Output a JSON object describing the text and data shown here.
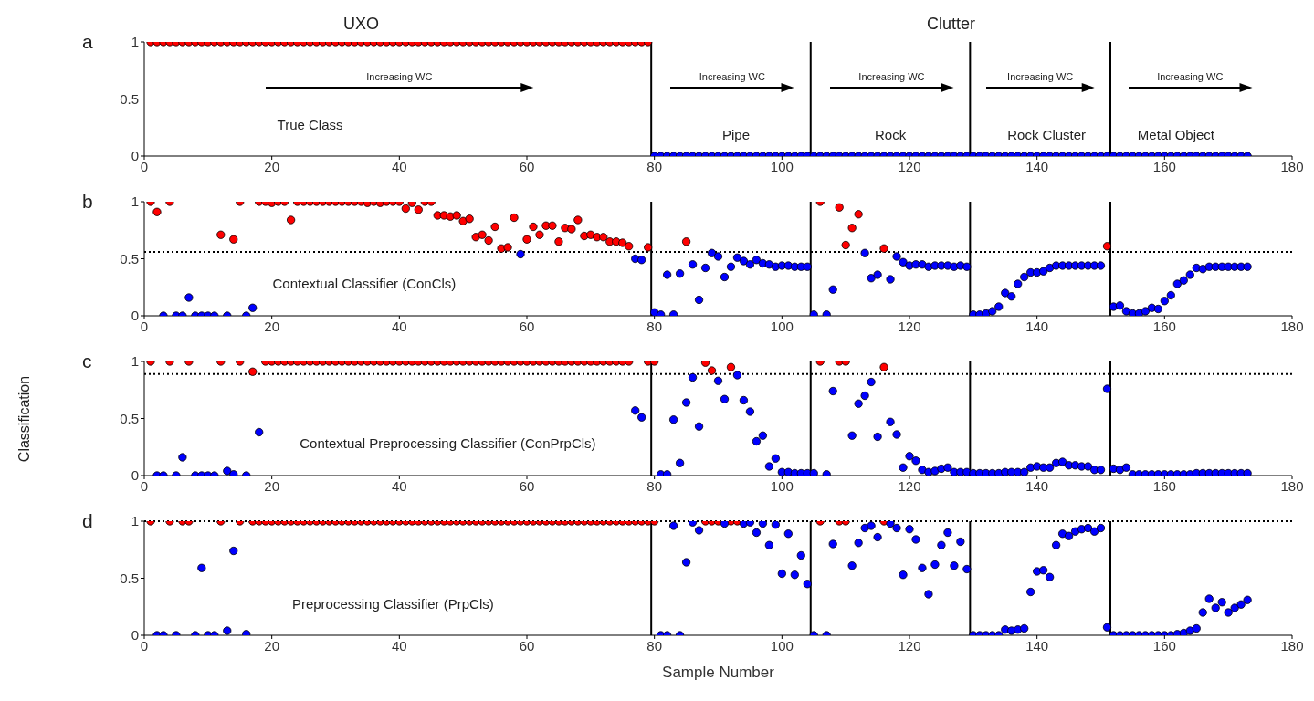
{
  "chart_data": [
    {
      "type": "scatter",
      "title": "a",
      "xlim": [
        0,
        180
      ],
      "xticks": [
        0,
        20,
        40,
        60,
        80,
        100,
        120,
        140,
        160,
        180
      ],
      "ylim": [
        0,
        1
      ],
      "yticks": [
        0,
        0.5,
        1
      ],
      "marker": "circle",
      "ref_lines": [
        {
          "axis": "x",
          "value": 79.5,
          "color": "#000000",
          "line_style": "solid"
        },
        {
          "axis": "x",
          "value": 104.5,
          "color": "#000000",
          "line_style": "solid"
        },
        {
          "axis": "x",
          "value": 129.5,
          "color": "#000000",
          "line_style": "solid"
        },
        {
          "axis": "x",
          "value": 151.5,
          "color": "#000000",
          "line_style": "solid"
        }
      ],
      "annotations": [
        "UXO",
        "Clutter",
        "Increasing WC",
        "Increasing WC",
        "Increasing WC",
        "Increasing WC",
        "Increasing WC",
        "True Class",
        "Pipe",
        "Rock",
        "Rock Cluster",
        "Metal Object"
      ],
      "series": [
        {
          "color": "#ff0000",
          "x": [
            1,
            2,
            3,
            4,
            5,
            6,
            7,
            8,
            9,
            10,
            11,
            12,
            13,
            14,
            15,
            16,
            17,
            18,
            19,
            20,
            21,
            22,
            23,
            24,
            25,
            26,
            27,
            28,
            29,
            30,
            31,
            32,
            33,
            34,
            35,
            36,
            37,
            38,
            39,
            40,
            41,
            42,
            43,
            44,
            45,
            46,
            47,
            48,
            49,
            50,
            51,
            52,
            53,
            54,
            55,
            56,
            57,
            58,
            59,
            60,
            61,
            62,
            63,
            64,
            65,
            66,
            67,
            68,
            69,
            70,
            71,
            72,
            73,
            74,
            75,
            76,
            77,
            78,
            79
          ],
          "values": [
            1,
            1,
            1,
            1,
            1,
            1,
            1,
            1,
            1,
            1,
            1,
            1,
            1,
            1,
            1,
            1,
            1,
            1,
            1,
            1,
            1,
            1,
            1,
            1,
            1,
            1,
            1,
            1,
            1,
            1,
            1,
            1,
            1,
            1,
            1,
            1,
            1,
            1,
            1,
            1,
            1,
            1,
            1,
            1,
            1,
            1,
            1,
            1,
            1,
            1,
            1,
            1,
            1,
            1,
            1,
            1,
            1,
            1,
            1,
            1,
            1,
            1,
            1,
            1,
            1,
            1,
            1,
            1,
            1,
            1,
            1,
            1,
            1,
            1,
            1,
            1,
            1,
            1,
            1
          ]
        },
        {
          "color": "#0000ff",
          "x": [
            80,
            81,
            82,
            83,
            84,
            85,
            86,
            87,
            88,
            89,
            90,
            91,
            92,
            93,
            94,
            95,
            96,
            97,
            98,
            99,
            100,
            101,
            102,
            103,
            104,
            105,
            106,
            107,
            108,
            109,
            110,
            111,
            112,
            113,
            114,
            115,
            116,
            117,
            118,
            119,
            120,
            121,
            122,
            123,
            124,
            125,
            126,
            127,
            128,
            129,
            130,
            131,
            132,
            133,
            134,
            135,
            136,
            137,
            138,
            139,
            140,
            141,
            142,
            143,
            144,
            145,
            146,
            147,
            148,
            149,
            150,
            151,
            152,
            153,
            154,
            155,
            156,
            157,
            158,
            159,
            160,
            161,
            162,
            163,
            164,
            165,
            166,
            167,
            168,
            169,
            170,
            171,
            172,
            173
          ],
          "values": [
            0,
            0,
            0,
            0,
            0,
            0,
            0,
            0,
            0,
            0,
            0,
            0,
            0,
            0,
            0,
            0,
            0,
            0,
            0,
            0,
            0,
            0,
            0,
            0,
            0,
            0,
            0,
            0,
            0,
            0,
            0,
            0,
            0,
            0,
            0,
            0,
            0,
            0,
            0,
            0,
            0,
            0,
            0,
            0,
            0,
            0,
            0,
            0,
            0,
            0,
            0,
            0,
            0,
            0,
            0,
            0,
            0,
            0,
            0,
            0,
            0,
            0,
            0,
            0,
            0,
            0,
            0,
            0,
            0,
            0,
            0,
            0,
            0,
            0,
            0,
            0,
            0,
            0,
            0,
            0,
            0,
            0,
            0,
            0,
            0,
            0,
            0,
            0,
            0,
            0,
            0,
            0,
            0,
            0
          ]
        }
      ]
    },
    {
      "type": "scatter",
      "title": "b",
      "xlim": [
        0,
        180
      ],
      "xticks": [
        0,
        20,
        40,
        60,
        80,
        100,
        120,
        140,
        160,
        180
      ],
      "ylim": [
        0,
        1
      ],
      "yticks": [
        0,
        0.5,
        1
      ],
      "marker": "circle",
      "ref_lines": [
        {
          "axis": "x",
          "value": 79.5,
          "color": "#000000",
          "line_style": "solid"
        },
        {
          "axis": "x",
          "value": 104.5,
          "color": "#000000",
          "line_style": "solid"
        },
        {
          "axis": "x",
          "value": 129.5,
          "color": "#000000",
          "line_style": "solid"
        },
        {
          "axis": "x",
          "value": 151.5,
          "color": "#000000",
          "line_style": "solid"
        },
        {
          "axis": "y",
          "value": 0.56,
          "color": "#000000",
          "line_style": "dotted"
        }
      ],
      "annotations": [
        "Contextual Classifier (ConCls)"
      ],
      "series": [
        {
          "color": "#ff0000",
          "x": [
            1,
            2,
            4,
            12,
            14,
            15,
            18,
            19,
            20,
            21,
            22,
            23,
            24,
            25,
            26,
            27,
            28,
            29,
            30,
            31,
            32,
            33,
            34,
            35,
            36,
            37,
            38,
            39,
            40,
            41,
            42,
            43,
            44,
            45,
            46,
            47,
            48,
            49,
            50,
            51,
            52,
            53,
            54,
            55,
            56,
            57,
            58,
            60,
            61,
            62,
            63,
            64,
            65,
            66,
            67,
            68,
            69,
            70,
            71,
            72,
            73,
            74,
            75,
            76,
            79,
            85,
            106,
            109,
            110,
            111,
            112,
            116,
            151
          ],
          "values": [
            1,
            0.91,
            1,
            0.71,
            0.67,
            1,
            1,
            1,
            0.99,
            1,
            1,
            0.84,
            1,
            1,
            1,
            1,
            1,
            1,
            1,
            1,
            1,
            1,
            1,
            0.99,
            1,
            0.99,
            1,
            1,
            1,
            0.94,
            0.99,
            0.93,
            1,
            1,
            0.88,
            0.88,
            0.87,
            0.88,
            0.83,
            0.85,
            0.69,
            0.71,
            0.66,
            0.78,
            0.59,
            0.6,
            0.86,
            0.67,
            0.78,
            0.71,
            0.79,
            0.79,
            0.65,
            0.77,
            0.76,
            0.84,
            0.7,
            0.71,
            0.69,
            0.69,
            0.65,
            0.65,
            0.64,
            0.61,
            0.6,
            0.65,
            1,
            0.95,
            0.62,
            0.77,
            0.89,
            0.59,
            0.61
          ]
        },
        {
          "color": "#0000ff",
          "x": [
            3,
            5,
            6,
            7,
            8,
            9,
            10,
            11,
            13,
            16,
            17,
            59,
            77,
            78,
            80,
            81,
            82,
            83,
            84,
            86,
            87,
            88,
            89,
            90,
            91,
            92,
            93,
            94,
            95,
            96,
            97,
            98,
            99,
            100,
            101,
            102,
            103,
            104,
            105,
            107,
            108,
            113,
            114,
            115,
            117,
            118,
            119,
            120,
            121,
            122,
            123,
            124,
            125,
            126,
            127,
            128,
            129,
            130,
            131,
            132,
            133,
            134,
            135,
            136,
            137,
            138,
            139,
            140,
            141,
            142,
            143,
            144,
            145,
            146,
            147,
            148,
            149,
            150,
            152,
            153,
            154,
            155,
            156,
            157,
            158,
            159,
            160,
            161,
            162,
            163,
            164,
            165,
            166,
            167,
            168,
            169,
            170,
            171,
            172,
            173
          ],
          "values": [
            0,
            0,
            0,
            0.16,
            0,
            0,
            0,
            0,
            0,
            0,
            0.07,
            0.54,
            0.5,
            0.49,
            0.03,
            0.01,
            0.36,
            0.01,
            0.37,
            0.45,
            0.14,
            0.42,
            0.55,
            0.52,
            0.34,
            0.43,
            0.51,
            0.48,
            0.45,
            0.49,
            0.46,
            0.45,
            0.43,
            0.44,
            0.44,
            0.43,
            0.43,
            0.43,
            0.01,
            0.01,
            0.23,
            0.55,
            0.33,
            0.36,
            0.32,
            0.52,
            0.47,
            0.44,
            0.45,
            0.45,
            0.43,
            0.44,
            0.44,
            0.44,
            0.43,
            0.44,
            0.43,
            0.01,
            0.01,
            0.02,
            0.04,
            0.08,
            0.2,
            0.17,
            0.28,
            0.34,
            0.38,
            0.38,
            0.39,
            0.42,
            0.44,
            0.44,
            0.44,
            0.44,
            0.44,
            0.44,
            0.44,
            0.44,
            0.08,
            0.09,
            0.04,
            0.02,
            0.02,
            0.04,
            0.07,
            0.06,
            0.13,
            0.18,
            0.28,
            0.31,
            0.36,
            0.42,
            0.41,
            0.43,
            0.43,
            0.43,
            0.43,
            0.43,
            0.43,
            0.43
          ]
        }
      ]
    },
    {
      "type": "scatter",
      "title": "c",
      "ylabel": "Classification",
      "xlim": [
        0,
        180
      ],
      "xticks": [
        0,
        20,
        40,
        60,
        80,
        100,
        120,
        140,
        160,
        180
      ],
      "ylim": [
        0,
        1
      ],
      "yticks": [
        0,
        0.5,
        1
      ],
      "marker": "circle",
      "ref_lines": [
        {
          "axis": "x",
          "value": 79.5,
          "color": "#000000",
          "line_style": "solid"
        },
        {
          "axis": "x",
          "value": 104.5,
          "color": "#000000",
          "line_style": "solid"
        },
        {
          "axis": "x",
          "value": 129.5,
          "color": "#000000",
          "line_style": "solid"
        },
        {
          "axis": "x",
          "value": 151.5,
          "color": "#000000",
          "line_style": "solid"
        },
        {
          "axis": "y",
          "value": 0.89,
          "color": "#000000",
          "line_style": "dotted"
        }
      ],
      "annotations": [
        "Contextual Preprocessing Classifier (ConPrpCls)"
      ],
      "series": [
        {
          "color": "#ff0000",
          "x": [
            1,
            4,
            7,
            12,
            15,
            17,
            19,
            20,
            21,
            22,
            23,
            24,
            25,
            26,
            27,
            28,
            29,
            30,
            31,
            32,
            33,
            34,
            35,
            36,
            37,
            38,
            39,
            40,
            41,
            42,
            43,
            44,
            45,
            46,
            47,
            48,
            49,
            50,
            51,
            52,
            53,
            54,
            55,
            56,
            57,
            58,
            59,
            60,
            61,
            62,
            63,
            64,
            65,
            66,
            67,
            68,
            69,
            70,
            71,
            72,
            73,
            74,
            75,
            76,
            79,
            80,
            88,
            89,
            92,
            106,
            109,
            110,
            116
          ],
          "values": [
            1,
            1,
            1,
            1,
            1,
            0.91,
            1,
            1,
            1,
            1,
            1,
            1,
            1,
            1,
            1,
            1,
            1,
            1,
            1,
            1,
            1,
            1,
            1,
            1,
            1,
            1,
            1,
            1,
            1,
            1,
            1,
            1,
            1,
            1,
            1,
            1,
            1,
            1,
            1,
            1,
            1,
            1,
            1,
            1,
            1,
            1,
            1,
            1,
            1,
            1,
            1,
            1,
            1,
            1,
            1,
            1,
            1,
            1,
            1,
            1,
            1,
            1,
            1,
            1,
            1,
            1,
            0.99,
            0.92,
            0.95,
            1,
            1,
            1,
            0.95
          ]
        },
        {
          "color": "#0000ff",
          "x": [
            2,
            3,
            5,
            6,
            8,
            9,
            10,
            11,
            13,
            14,
            16,
            18,
            77,
            78,
            81,
            82,
            83,
            84,
            85,
            86,
            87,
            90,
            91,
            93,
            94,
            95,
            96,
            97,
            98,
            99,
            100,
            101,
            102,
            103,
            104,
            105,
            107,
            108,
            111,
            112,
            113,
            114,
            115,
            117,
            118,
            119,
            120,
            121,
            122,
            123,
            124,
            125,
            126,
            127,
            128,
            129,
            130,
            131,
            132,
            133,
            134,
            135,
            136,
            137,
            138,
            139,
            140,
            141,
            142,
            143,
            144,
            145,
            146,
            147,
            148,
            149,
            150,
            151,
            152,
            153,
            154,
            155,
            156,
            157,
            158,
            159,
            160,
            161,
            162,
            163,
            164,
            165,
            166,
            167,
            168,
            169,
            170,
            171,
            172,
            173
          ],
          "values": [
            0,
            0,
            0,
            0.16,
            0,
            0,
            0,
            0,
            0.04,
            0.01,
            0,
            0.38,
            0.57,
            0.51,
            0.01,
            0.01,
            0.49,
            0.11,
            0.64,
            0.86,
            0.43,
            0.83,
            0.67,
            0.88,
            0.66,
            0.56,
            0.3,
            0.35,
            0.08,
            0.15,
            0.03,
            0.03,
            0.02,
            0.02,
            0.02,
            0.02,
            0.01,
            0.74,
            0.35,
            0.63,
            0.7,
            0.82,
            0.34,
            0.47,
            0.36,
            0.07,
            0.17,
            0.13,
            0.05,
            0.03,
            0.04,
            0.06,
            0.07,
            0.03,
            0.03,
            0.03,
            0.02,
            0.02,
            0.02,
            0.02,
            0.02,
            0.03,
            0.03,
            0.03,
            0.03,
            0.07,
            0.08,
            0.07,
            0.07,
            0.11,
            0.12,
            0.09,
            0.09,
            0.08,
            0.08,
            0.05,
            0.05,
            0.76,
            0.06,
            0.05,
            0.07,
            0.01,
            0.01,
            0.01,
            0.01,
            0.01,
            0.01,
            0.01,
            0.01,
            0.01,
            0.01,
            0.02,
            0.02,
            0.02,
            0.02,
            0.02,
            0.02,
            0.02,
            0.02,
            0.02
          ]
        }
      ]
    },
    {
      "type": "scatter",
      "title": "d",
      "xlabel": "Sample Number",
      "xlim": [
        0,
        180
      ],
      "xticks": [
        0,
        20,
        40,
        60,
        80,
        100,
        120,
        140,
        160,
        180
      ],
      "ylim": [
        0,
        1
      ],
      "yticks": [
        0,
        0.5,
        1
      ],
      "marker": "circle",
      "ref_lines": [
        {
          "axis": "x",
          "value": 79.5,
          "color": "#000000",
          "line_style": "solid"
        },
        {
          "axis": "x",
          "value": 104.5,
          "color": "#000000",
          "line_style": "solid"
        },
        {
          "axis": "x",
          "value": 129.5,
          "color": "#000000",
          "line_style": "solid"
        },
        {
          "axis": "x",
          "value": 151.5,
          "color": "#000000",
          "line_style": "solid"
        },
        {
          "axis": "y",
          "value": 1,
          "color": "#000000",
          "line_style": "dotted"
        }
      ],
      "annotations": [
        "Preprocessing Classifier (PrpCls)"
      ],
      "series": [
        {
          "color": "#ff0000",
          "x": [
            1,
            4,
            6,
            7,
            12,
            15,
            17,
            18,
            19,
            20,
            21,
            22,
            23,
            24,
            25,
            26,
            27,
            28,
            29,
            30,
            31,
            32,
            33,
            34,
            35,
            36,
            37,
            38,
            39,
            40,
            41,
            42,
            43,
            44,
            45,
            46,
            47,
            48,
            49,
            50,
            51,
            52,
            53,
            54,
            55,
            56,
            57,
            58,
            59,
            60,
            61,
            62,
            63,
            64,
            65,
            66,
            67,
            68,
            69,
            70,
            71,
            72,
            73,
            74,
            75,
            76,
            77,
            78,
            79,
            80,
            88,
            89,
            90,
            92,
            93,
            106,
            109,
            110,
            116
          ],
          "values": [
            1,
            1,
            1,
            1,
            1,
            1,
            1,
            1,
            1,
            1,
            1,
            1,
            1,
            1,
            1,
            1,
            1,
            1,
            1,
            1,
            1,
            1,
            1,
            1,
            1,
            1,
            1,
            1,
            1,
            1,
            1,
            1,
            1,
            1,
            1,
            1,
            1,
            1,
            1,
            1,
            1,
            1,
            1,
            1,
            1,
            1,
            1,
            1,
            1,
            1,
            1,
            1,
            1,
            1,
            1,
            1,
            1,
            1,
            1,
            1,
            1,
            1,
            1,
            1,
            1,
            1,
            1,
            1,
            1,
            1,
            1,
            1,
            1,
            1,
            1,
            1,
            1,
            1,
            1
          ]
        },
        {
          "color": "#0000ff",
          "x": [
            2,
            3,
            5,
            8,
            9,
            10,
            11,
            13,
            14,
            16,
            81,
            82,
            83,
            84,
            85,
            86,
            87,
            91,
            94,
            95,
            96,
            97,
            98,
            99,
            100,
            101,
            102,
            103,
            104,
            105,
            107,
            108,
            111,
            112,
            113,
            114,
            115,
            117,
            118,
            119,
            120,
            121,
            122,
            123,
            124,
            125,
            126,
            127,
            128,
            129,
            130,
            131,
            132,
            133,
            134,
            135,
            136,
            137,
            138,
            139,
            140,
            141,
            142,
            143,
            144,
            145,
            146,
            147,
            148,
            149,
            150,
            151,
            152,
            153,
            154,
            155,
            156,
            157,
            158,
            159,
            160,
            161,
            162,
            163,
            164,
            165,
            166,
            167,
            168,
            169,
            170,
            171,
            172,
            173
          ],
          "values": [
            0,
            0,
            0,
            0,
            0.59,
            0,
            0,
            0.04,
            0.74,
            0.01,
            0,
            0,
            0.96,
            0,
            0.64,
            0.99,
            0.92,
            0.98,
            0.98,
            0.99,
            0.9,
            0.98,
            0.79,
            0.97,
            0.54,
            0.89,
            0.53,
            0.7,
            0.45,
            0,
            0,
            0.8,
            0.61,
            0.81,
            0.94,
            0.96,
            0.86,
            0.98,
            0.94,
            0.53,
            0.93,
            0.84,
            0.59,
            0.36,
            0.62,
            0.79,
            0.9,
            0.61,
            0.82,
            0.58,
            0,
            0,
            0,
            0,
            0,
            0.05,
            0.04,
            0.05,
            0.06,
            0.38,
            0.56,
            0.57,
            0.51,
            0.79,
            0.89,
            0.87,
            0.91,
            0.93,
            0.94,
            0.91,
            0.94,
            0.07,
            0,
            0,
            0,
            0,
            0,
            0,
            0,
            0,
            0,
            0,
            0.01,
            0.02,
            0.04,
            0.06,
            0.2,
            0.32,
            0.24,
            0.29,
            0.2,
            0.24,
            0.27,
            0.31
          ]
        }
      ]
    }
  ]
}
